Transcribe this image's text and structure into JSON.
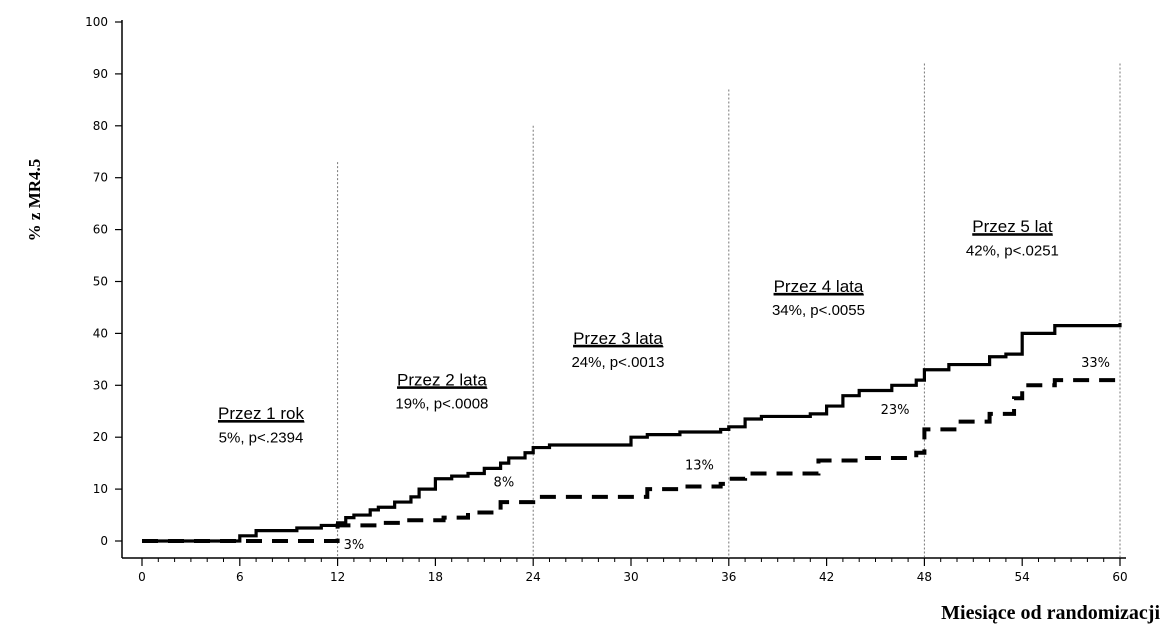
{
  "chart_data": {
    "type": "line",
    "xlabel": "Miesiące od randomizacji",
    "ylabel": "% z MR4.5",
    "xlim": [
      0,
      60
    ],
    "ylim": [
      0,
      100
    ],
    "x_ticks": [
      0,
      6,
      12,
      18,
      24,
      30,
      36,
      42,
      48,
      54,
      60
    ],
    "y_ticks": [
      0,
      10,
      20,
      30,
      40,
      50,
      60,
      70,
      80,
      90,
      100
    ],
    "grid": false,
    "legend": "none",
    "series": [
      {
        "style": "solid",
        "color": "#000000",
        "x": [
          0,
          5.5,
          6,
          7,
          9.5,
          11,
          12,
          12.5,
          13,
          14,
          14.5,
          15.5,
          16.5,
          17,
          18,
          19,
          20,
          21,
          22,
          22.5,
          23.5,
          24,
          25,
          29,
          30,
          31,
          33,
          35.5,
          36,
          37,
          38,
          41,
          42,
          43,
          44,
          46,
          47.5,
          48,
          49.5,
          52,
          53,
          54,
          56,
          60
        ],
        "y": [
          0,
          0,
          1,
          2,
          2.5,
          3,
          3.5,
          4.5,
          5,
          6,
          6.5,
          7.5,
          8.5,
          10,
          12,
          12.5,
          13,
          14,
          15,
          16,
          17,
          18,
          18.5,
          18.5,
          20,
          20.5,
          21,
          21.5,
          22,
          23.5,
          24,
          24.5,
          26,
          28,
          29,
          30,
          31,
          33,
          34,
          35.5,
          36,
          40,
          41.5,
          42
        ]
      },
      {
        "style": "dashed",
        "color": "#000000",
        "x": [
          0,
          11.5,
          12,
          14.5,
          16,
          18.5,
          20,
          22,
          24,
          29.5,
          31,
          33,
          35.5,
          36,
          37,
          40.5,
          41.5,
          44,
          47.5,
          48,
          50,
          52,
          53.5,
          54,
          56,
          60
        ],
        "y": [
          0,
          0,
          3,
          3.5,
          4,
          4.5,
          5.5,
          7.5,
          8.5,
          8.5,
          10,
          10.5,
          11,
          12,
          13,
          13,
          15.5,
          16,
          17,
          21.5,
          23,
          24.5,
          27.5,
          30,
          31,
          31.5
        ]
      }
    ],
    "vertical_markers": [
      {
        "x": 12,
        "top": 73
      },
      {
        "x": 24,
        "top": 80
      },
      {
        "x": 36,
        "top": 87
      },
      {
        "x": 48,
        "top": 92
      },
      {
        "x": 60,
        "top": 92
      }
    ],
    "annotations": [
      {
        "title": "Przez 1 rok",
        "subtitle": "5%, p<.2394",
        "x": 7.3,
        "y_title": 23.5,
        "y_sub": 19
      },
      {
        "title": "Przez 2 lata",
        "subtitle": "19%, p<.0008",
        "x": 18.4,
        "y_title": 30,
        "y_sub": 25.5
      },
      {
        "title": "Przez 3 lata",
        "subtitle": "24%, p<.0013",
        "x": 29.2,
        "y_title": 38,
        "y_sub": 33.5
      },
      {
        "title": "Przez 4 lata",
        "subtitle": "34%, p<.0055",
        "x": 41.5,
        "y_title": 48,
        "y_sub": 43.5
      },
      {
        "title": "Przez 5 lat",
        "subtitle": "42%, p<.0251",
        "x": 53.4,
        "y_title": 59.5,
        "y_sub": 55
      }
    ],
    "point_labels": [
      {
        "text": "3%",
        "x": 13.0,
        "y": -1.5
      },
      {
        "text": "8%",
        "x": 22.2,
        "y": 10.5
      },
      {
        "text": "13%",
        "x": 34.2,
        "y": 13.8
      },
      {
        "text": "23%",
        "x": 46.2,
        "y": 24.5
      },
      {
        "text": "33%",
        "x": 58.5,
        "y": 33.5
      }
    ]
  }
}
